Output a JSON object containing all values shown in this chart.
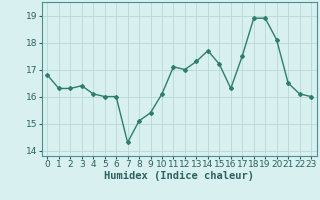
{
  "x": [
    0,
    1,
    2,
    3,
    4,
    5,
    6,
    7,
    8,
    9,
    10,
    11,
    12,
    13,
    14,
    15,
    16,
    17,
    18,
    19,
    20,
    21,
    22,
    23
  ],
  "y": [
    16.8,
    16.3,
    16.3,
    16.4,
    16.1,
    16.0,
    16.0,
    14.3,
    15.1,
    15.4,
    16.1,
    17.1,
    17.0,
    17.3,
    17.7,
    17.2,
    16.3,
    17.5,
    18.9,
    18.9,
    18.1,
    16.5,
    16.1,
    16.0
  ],
  "line_color": "#2e7d6e",
  "marker": "D",
  "marker_size": 2.0,
  "bg_color": "#d8f0f0",
  "grid_color": "#b8d8d8",
  "xlabel": "Humidex (Indice chaleur)",
  "xlabel_fontsize": 7.5,
  "tick_fontsize": 6.5,
  "xlim": [
    -0.5,
    23.5
  ],
  "ylim": [
    13.8,
    19.5
  ],
  "yticks": [
    14,
    15,
    16,
    17,
    18,
    19
  ],
  "xticks": [
    0,
    1,
    2,
    3,
    4,
    5,
    6,
    7,
    8,
    9,
    10,
    11,
    12,
    13,
    14,
    15,
    16,
    17,
    18,
    19,
    20,
    21,
    22,
    23
  ],
  "line_width": 1.0
}
